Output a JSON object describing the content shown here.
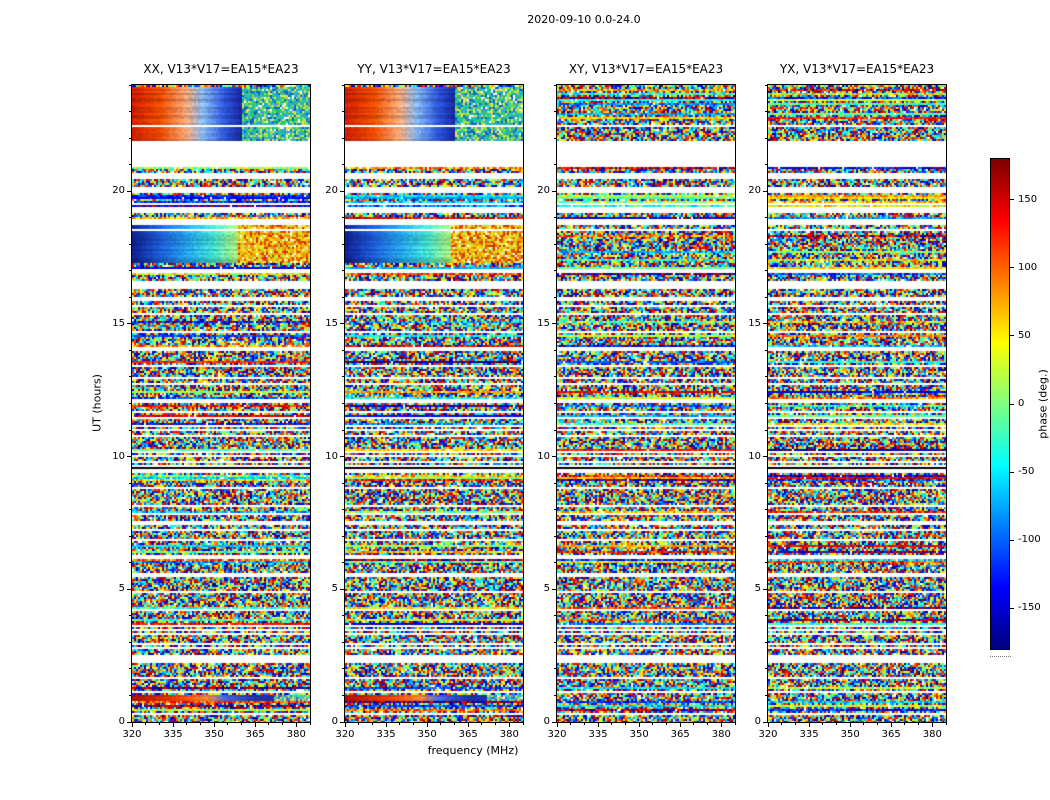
{
  "chart_data": {
    "type": "heatmap",
    "title": "2020-09-10 0.0-24.0",
    "xlabel": "frequency (MHz)",
    "ylabel": "UT (hours)",
    "baseline": "V13*V17=EA15*EA23",
    "x_range": [
      320,
      385
    ],
    "x_ticks": [
      320,
      335,
      350,
      365,
      380
    ],
    "x_minor_step": 5,
    "y_range": [
      0,
      24
    ],
    "y_ticks": [
      0,
      5,
      10,
      15,
      20
    ],
    "y_minor_step": 1,
    "panels": [
      {
        "pol": "XX",
        "title": "XX, V13*V17=EA15*EA23"
      },
      {
        "pol": "YY",
        "title": "YY, V13*V17=EA15*EA23"
      },
      {
        "pol": "XY",
        "title": "XY, V13*V17=EA15*EA23"
      },
      {
        "pol": "YX",
        "title": "YX, V13*V17=EA15*EA23"
      }
    ],
    "colorbar": {
      "label": "phase (deg.)",
      "colormap": "jet",
      "range": [
        -180,
        180
      ],
      "ticks": [
        150,
        100,
        50,
        0,
        -50,
        -100,
        -150
      ]
    },
    "description": "Visibility phase vs frequency and UT time for four polarization products; mostly random phase speckle, white horizontal bands are flagged/missing time ranges, coherent phase-gradient bands appear in XX and YY.",
    "gaps_ut_hours": [
      [
        20.92,
        21.9
      ],
      [
        20.45,
        20.7
      ],
      [
        19.95,
        20.12
      ],
      [
        19.2,
        19.42
      ],
      [
        18.7,
        18.95
      ],
      [
        16.95,
        17.08
      ],
      [
        16.4,
        16.55
      ],
      [
        15.95,
        16.04
      ],
      [
        15.3,
        15.4
      ],
      [
        14.65,
        14.74
      ],
      [
        14.0,
        14.08
      ],
      [
        13.35,
        13.44
      ],
      [
        12.7,
        12.78
      ],
      [
        12.05,
        12.14
      ],
      [
        11.4,
        11.48
      ],
      [
        10.75,
        10.84
      ],
      [
        10.1,
        10.18
      ],
      [
        9.42,
        9.72
      ],
      [
        8.75,
        8.84
      ],
      [
        8.1,
        8.18
      ],
      [
        7.45,
        7.54
      ],
      [
        6.8,
        6.88
      ],
      [
        6.15,
        6.24
      ],
      [
        5.5,
        5.58
      ],
      [
        4.85,
        4.94
      ],
      [
        4.2,
        4.28
      ],
      [
        3.55,
        3.64
      ],
      [
        2.9,
        2.98
      ],
      [
        2.25,
        2.5
      ],
      [
        1.6,
        1.68
      ],
      [
        1.08,
        1.15
      ],
      [
        0.3,
        0.36
      ]
    ],
    "black_rows_ut_hours": [
      [
        9.5,
        9.58
      ]
    ],
    "coherent_features": [
      {
        "t0": 21.92,
        "t1": 23.95,
        "apply_to": [
          "XX",
          "YY"
        ],
        "stops": [
          [
            0.0,
            "#c81e00"
          ],
          [
            0.16,
            "#e84a00"
          ],
          [
            0.3,
            "#f0a070"
          ],
          [
            0.4,
            "#7fb0ea"
          ],
          [
            0.52,
            "#2c55d8"
          ],
          [
            0.62,
            "#16249a"
          ]
        ],
        "speckle_from": 0.62,
        "speckle_palette": [
          "#1fb3a0",
          "#2fd060",
          "#9fe030",
          "#30a0e0",
          "#e8e060",
          "#1060c0",
          "#20c8c8"
        ]
      },
      {
        "t0": 17.3,
        "t1": 18.7,
        "apply_to": [
          "XX",
          "YY"
        ],
        "stops": [
          [
            0.0,
            "#101f8c"
          ],
          [
            0.15,
            "#1b57d0"
          ],
          [
            0.32,
            "#23a2e6"
          ],
          [
            0.46,
            "#3fd8c8"
          ],
          [
            0.58,
            "#9ce87e"
          ]
        ],
        "speckle_from": 0.6,
        "speckle_palette": [
          "#f5d800",
          "#f09000",
          "#e05a00",
          "#c8e030",
          "#f0b000",
          "#d83000",
          "#f8e860"
        ]
      },
      {
        "t0": 0.82,
        "t1": 1.05,
        "apply_to": [
          "XX",
          "YY"
        ],
        "stops": [
          [
            0.0,
            "#a80f00"
          ],
          [
            0.25,
            "#e03c00"
          ],
          [
            0.42,
            "#f08030"
          ],
          [
            0.52,
            "#4468d8"
          ],
          [
            0.7,
            "#1c2ea8"
          ]
        ],
        "speckle_from": 0.8,
        "speckle_palette": [
          "#30c0d8",
          "#60d890",
          "#e8d850",
          "#3070d0"
        ]
      }
    ]
  }
}
